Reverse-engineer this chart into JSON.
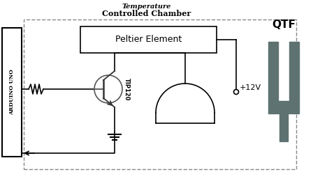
{
  "title_line1": "Temperature",
  "title_line2": "Controlled Chamber",
  "arduino_label": "ARDUINO UNO",
  "peltier_label": "Peltier Element",
  "transistor_label": "TIP120",
  "qtf_label": "QTF",
  "voltage_label": "+12V",
  "bg_color": "#ffffff",
  "qtf_color": "#5f7272",
  "figsize": [
    4.68,
    2.6
  ],
  "dpi": 100
}
